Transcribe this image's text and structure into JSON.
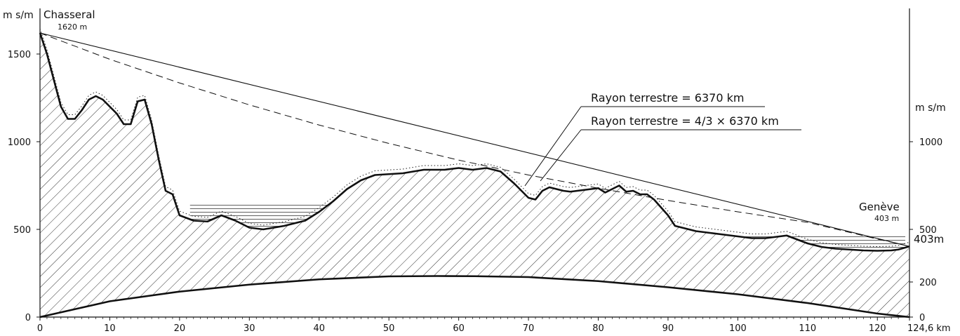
{
  "chart_data": {
    "type": "line",
    "title": "",
    "x_unit": "km",
    "y_unit_left": "m s/m",
    "y_unit_right": "m s/m",
    "xlim": [
      0,
      124.6
    ],
    "ylim": [
      0,
      1650
    ],
    "x_ticks": [
      "0",
      "10",
      "20",
      "30",
      "40",
      "50",
      "60",
      "70",
      "80",
      "90",
      "100",
      "110",
      "120",
      "124,6 km"
    ],
    "y_ticks_left": [
      "0",
      "500",
      "1000",
      "1500"
    ],
    "y_ticks_right": [
      "0",
      "200",
      "500",
      "1000"
    ],
    "endpoints": {
      "start": {
        "name": "Chasseral",
        "altitude": "1620 m"
      },
      "end": {
        "name": "Genève",
        "altitude": "403 m",
        "right_label": "403m"
      }
    },
    "legend": [
      {
        "label": "Rayon terrestre = 6370 km",
        "style": "solid"
      },
      {
        "label": "Rayon terrestre = 4/3 × 6370 km",
        "style": "dashed"
      }
    ],
    "terrain_profile": {
      "x": [
        0,
        1,
        2,
        3,
        4,
        5,
        6,
        7,
        8,
        9,
        10,
        11,
        12,
        13,
        14,
        15,
        16,
        17,
        18,
        19,
        20,
        22,
        24,
        26,
        28,
        30,
        32,
        35,
        38,
        40,
        42,
        44,
        46,
        48,
        50,
        52,
        55,
        58,
        60,
        62,
        64,
        66,
        68,
        70,
        71,
        72,
        73,
        74,
        75,
        76,
        78,
        80,
        81,
        82,
        83,
        84,
        85,
        86,
        87,
        88,
        90,
        91,
        92,
        94,
        96,
        98,
        100,
        102,
        104,
        106,
        107,
        108,
        110,
        112,
        114,
        116,
        118,
        120,
        122,
        123,
        124.6
      ],
      "y": [
        1620,
        1500,
        1350,
        1200,
        1130,
        1130,
        1180,
        1240,
        1260,
        1240,
        1200,
        1160,
        1100,
        1100,
        1230,
        1240,
        1100,
        900,
        720,
        700,
        580,
        550,
        545,
        580,
        550,
        510,
        500,
        520,
        550,
        600,
        660,
        730,
        780,
        810,
        815,
        820,
        840,
        840,
        850,
        840,
        850,
        830,
        760,
        680,
        670,
        720,
        740,
        730,
        720,
        715,
        725,
        735,
        710,
        730,
        750,
        715,
        720,
        700,
        700,
        670,
        580,
        520,
        510,
        490,
        480,
        470,
        460,
        450,
        450,
        460,
        465,
        450,
        420,
        400,
        390,
        385,
        380,
        378,
        380,
        385,
        403
      ]
    },
    "curvature_curve_6370km": {
      "x": [
        0,
        10,
        20,
        30,
        40,
        50,
        57,
        62.3,
        70,
        80,
        90,
        100,
        110,
        120,
        124.6
      ],
      "y": [
        0,
        90,
        145,
        185,
        215,
        232,
        234,
        233,
        228,
        205,
        170,
        130,
        80,
        20,
        0
      ]
    },
    "sight_line_6370km": {
      "x": [
        0,
        124.6
      ],
      "y": [
        1620,
        403
      ]
    },
    "sight_line_4_3": {
      "x": [
        0,
        10,
        20,
        30,
        40,
        50,
        60,
        70,
        80,
        90,
        100,
        110,
        120,
        124.6
      ],
      "y": [
        1620,
        1470,
        1335,
        1210,
        1095,
        990,
        895,
        810,
        735,
        665,
        600,
        540,
        445,
        403
      ]
    },
    "lakes": [
      {
        "x_start": 21.5,
        "x_end": 44,
        "level": 640
      },
      {
        "x_start": 91,
        "x_end": 124,
        "level": 470
      }
    ]
  }
}
